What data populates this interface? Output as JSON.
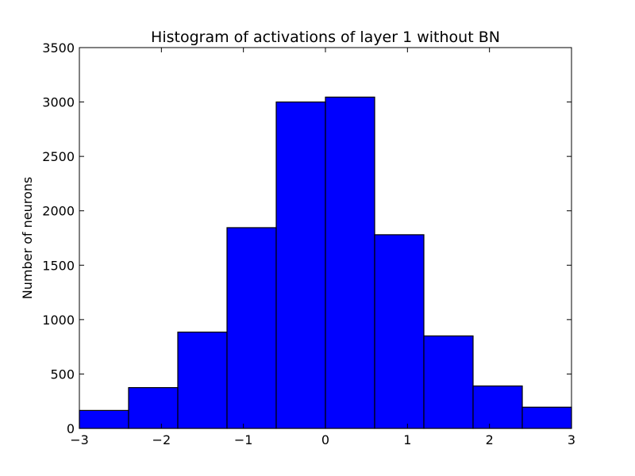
{
  "chart_data": {
    "type": "bar",
    "title": "Histogram of activations of layer 1  without BN",
    "xlabel": "",
    "ylabel": "Number of neurons",
    "xlim": [
      -3,
      3
    ],
    "ylim": [
      0,
      3500
    ],
    "bin_edges": [
      -3,
      -2.4,
      -1.8,
      -1.2,
      -0.6,
      0,
      0.6,
      1.2,
      1.8,
      2.4,
      3
    ],
    "values": [
      165,
      375,
      885,
      1845,
      3000,
      3045,
      1780,
      850,
      390,
      195
    ],
    "x_ticks": [
      {
        "value": -3,
        "label": "−3"
      },
      {
        "value": -2,
        "label": "−2"
      },
      {
        "value": -1,
        "label": "−1"
      },
      {
        "value": 0,
        "label": "0"
      },
      {
        "value": 1,
        "label": "1"
      },
      {
        "value": 2,
        "label": "2"
      },
      {
        "value": 3,
        "label": "3"
      }
    ],
    "y_ticks": [
      {
        "value": 0,
        "label": "0"
      },
      {
        "value": 500,
        "label": "500"
      },
      {
        "value": 1000,
        "label": "1000"
      },
      {
        "value": 1500,
        "label": "1500"
      },
      {
        "value": 2000,
        "label": "2000"
      },
      {
        "value": 2500,
        "label": "2500"
      },
      {
        "value": 3000,
        "label": "3000"
      },
      {
        "value": 3500,
        "label": "3500"
      }
    ],
    "grid": false,
    "bar_color": "#0000ff",
    "edge_color": "#000000"
  }
}
